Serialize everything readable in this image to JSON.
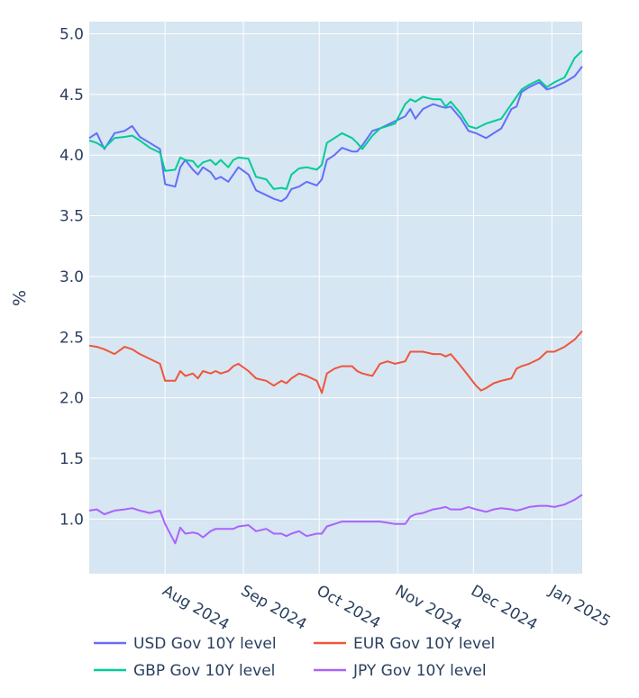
{
  "chart_data": {
    "type": "line",
    "ylabel": "%",
    "ylim": [
      0.55,
      5.1
    ],
    "xlim": [
      "2024-07-02",
      "2025-01-13"
    ],
    "y_ticks": [
      "1.0",
      "1.5",
      "2.0",
      "2.5",
      "3.0",
      "3.5",
      "4.0",
      "4.5",
      "5.0"
    ],
    "x_ticks": [
      {
        "date": "2024-08-01",
        "label": "Aug 2024"
      },
      {
        "date": "2024-09-01",
        "label": "Sep 2024"
      },
      {
        "date": "2024-10-01",
        "label": "Oct 2024"
      },
      {
        "date": "2024-11-01",
        "label": "Nov 2024"
      },
      {
        "date": "2024-12-01",
        "label": "Dec 2024"
      },
      {
        "date": "2025-01-01",
        "label": "Jan 2025"
      }
    ],
    "grid": true,
    "legend_position": "bottom",
    "series": [
      {
        "name": "USD Gov 10Y level",
        "color": "#636efa",
        "x": [
          "2024-07-02",
          "2024-07-05",
          "2024-07-08",
          "2024-07-12",
          "2024-07-16",
          "2024-07-19",
          "2024-07-22",
          "2024-07-26",
          "2024-07-30",
          "2024-08-01",
          "2024-08-05",
          "2024-08-07",
          "2024-08-09",
          "2024-08-12",
          "2024-08-14",
          "2024-08-16",
          "2024-08-19",
          "2024-08-21",
          "2024-08-23",
          "2024-08-26",
          "2024-08-28",
          "2024-08-30",
          "2024-09-03",
          "2024-09-06",
          "2024-09-10",
          "2024-09-13",
          "2024-09-16",
          "2024-09-18",
          "2024-09-20",
          "2024-09-23",
          "2024-09-26",
          "2024-09-30",
          "2024-10-02",
          "2024-10-04",
          "2024-10-07",
          "2024-10-10",
          "2024-10-14",
          "2024-10-16",
          "2024-10-18",
          "2024-10-22",
          "2024-10-25",
          "2024-10-28",
          "2024-10-31",
          "2024-11-04",
          "2024-11-06",
          "2024-11-08",
          "2024-11-11",
          "2024-11-15",
          "2024-11-18",
          "2024-11-20",
          "2024-11-22",
          "2024-11-26",
          "2024-11-29",
          "2024-12-02",
          "2024-12-04",
          "2024-12-06",
          "2024-12-09",
          "2024-12-12",
          "2024-12-16",
          "2024-12-18",
          "2024-12-20",
          "2024-12-23",
          "2024-12-27",
          "2024-12-30",
          "2025-01-02",
          "2025-01-06",
          "2025-01-10",
          "2025-01-13"
        ],
        "values": [
          4.14,
          4.18,
          4.05,
          4.18,
          4.2,
          4.24,
          4.15,
          4.1,
          4.05,
          3.76,
          3.74,
          3.9,
          3.96,
          3.88,
          3.84,
          3.9,
          3.86,
          3.8,
          3.82,
          3.78,
          3.84,
          3.9,
          3.84,
          3.71,
          3.67,
          3.64,
          3.62,
          3.65,
          3.72,
          3.74,
          3.78,
          3.75,
          3.8,
          3.96,
          4.0,
          4.06,
          4.03,
          4.03,
          4.08,
          4.2,
          4.22,
          4.25,
          4.28,
          4.32,
          4.38,
          4.3,
          4.38,
          4.42,
          4.4,
          4.39,
          4.4,
          4.3,
          4.2,
          4.18,
          4.16,
          4.14,
          4.18,
          4.22,
          4.38,
          4.4,
          4.52,
          4.56,
          4.6,
          4.54,
          4.56,
          4.6,
          4.65,
          4.73
        ]
      },
      {
        "name": "EUR Gov 10Y level",
        "color": "#ef553b",
        "x": [
          "2024-07-02",
          "2024-07-05",
          "2024-07-08",
          "2024-07-12",
          "2024-07-16",
          "2024-07-19",
          "2024-07-22",
          "2024-07-26",
          "2024-07-30",
          "2024-08-01",
          "2024-08-05",
          "2024-08-07",
          "2024-08-09",
          "2024-08-12",
          "2024-08-14",
          "2024-08-16",
          "2024-08-19",
          "2024-08-21",
          "2024-08-23",
          "2024-08-26",
          "2024-08-28",
          "2024-08-30",
          "2024-09-03",
          "2024-09-06",
          "2024-09-10",
          "2024-09-13",
          "2024-09-16",
          "2024-09-18",
          "2024-09-20",
          "2024-09-23",
          "2024-09-26",
          "2024-09-30",
          "2024-10-02",
          "2024-10-04",
          "2024-10-07",
          "2024-10-10",
          "2024-10-14",
          "2024-10-16",
          "2024-10-18",
          "2024-10-22",
          "2024-10-25",
          "2024-10-28",
          "2024-10-31",
          "2024-11-04",
          "2024-11-06",
          "2024-11-08",
          "2024-11-11",
          "2024-11-15",
          "2024-11-18",
          "2024-11-20",
          "2024-11-22",
          "2024-11-26",
          "2024-11-29",
          "2024-12-02",
          "2024-12-04",
          "2024-12-06",
          "2024-12-09",
          "2024-12-12",
          "2024-12-16",
          "2024-12-18",
          "2024-12-20",
          "2024-12-23",
          "2024-12-27",
          "2024-12-30",
          "2025-01-02",
          "2025-01-06",
          "2025-01-10",
          "2025-01-13"
        ],
        "values": [
          2.43,
          2.42,
          2.4,
          2.36,
          2.42,
          2.4,
          2.36,
          2.32,
          2.28,
          2.14,
          2.14,
          2.22,
          2.18,
          2.2,
          2.16,
          2.22,
          2.2,
          2.22,
          2.2,
          2.22,
          2.26,
          2.28,
          2.22,
          2.16,
          2.14,
          2.1,
          2.14,
          2.12,
          2.16,
          2.2,
          2.18,
          2.14,
          2.04,
          2.2,
          2.24,
          2.26,
          2.26,
          2.22,
          2.2,
          2.18,
          2.28,
          2.3,
          2.28,
          2.3,
          2.38,
          2.38,
          2.38,
          2.36,
          2.36,
          2.34,
          2.36,
          2.26,
          2.18,
          2.1,
          2.06,
          2.08,
          2.12,
          2.14,
          2.16,
          2.24,
          2.26,
          2.28,
          2.32,
          2.38,
          2.38,
          2.42,
          2.48,
          2.55
        ]
      },
      {
        "name": "GBP Gov 10Y level",
        "color": "#00cc96",
        "x": [
          "2024-07-02",
          "2024-07-05",
          "2024-07-08",
          "2024-07-12",
          "2024-07-16",
          "2024-07-19",
          "2024-07-22",
          "2024-07-26",
          "2024-07-30",
          "2024-08-01",
          "2024-08-05",
          "2024-08-07",
          "2024-08-09",
          "2024-08-12",
          "2024-08-14",
          "2024-08-16",
          "2024-08-19",
          "2024-08-21",
          "2024-08-23",
          "2024-08-26",
          "2024-08-28",
          "2024-08-30",
          "2024-09-03",
          "2024-09-06",
          "2024-09-10",
          "2024-09-13",
          "2024-09-16",
          "2024-09-18",
          "2024-09-20",
          "2024-09-23",
          "2024-09-26",
          "2024-09-30",
          "2024-10-02",
          "2024-10-04",
          "2024-10-07",
          "2024-10-10",
          "2024-10-14",
          "2024-10-16",
          "2024-10-18",
          "2024-10-22",
          "2024-10-25",
          "2024-10-28",
          "2024-10-31",
          "2024-11-04",
          "2024-11-06",
          "2024-11-08",
          "2024-11-11",
          "2024-11-15",
          "2024-11-18",
          "2024-11-20",
          "2024-11-22",
          "2024-11-26",
          "2024-11-29",
          "2024-12-02",
          "2024-12-04",
          "2024-12-06",
          "2024-12-09",
          "2024-12-12",
          "2024-12-16",
          "2024-12-18",
          "2024-12-20",
          "2024-12-23",
          "2024-12-27",
          "2024-12-30",
          "2025-01-02",
          "2025-01-06",
          "2025-01-10",
          "2025-01-13"
        ],
        "values": [
          4.12,
          4.1,
          4.06,
          4.14,
          4.15,
          4.16,
          4.12,
          4.06,
          4.02,
          3.87,
          3.88,
          3.98,
          3.96,
          3.95,
          3.9,
          3.94,
          3.96,
          3.92,
          3.96,
          3.9,
          3.96,
          3.98,
          3.97,
          3.82,
          3.8,
          3.72,
          3.73,
          3.72,
          3.84,
          3.89,
          3.9,
          3.88,
          3.92,
          4.1,
          4.14,
          4.18,
          4.14,
          4.1,
          4.05,
          4.16,
          4.22,
          4.24,
          4.26,
          4.42,
          4.46,
          4.44,
          4.48,
          4.46,
          4.46,
          4.4,
          4.44,
          4.34,
          4.24,
          4.22,
          4.24,
          4.26,
          4.28,
          4.3,
          4.42,
          4.48,
          4.54,
          4.58,
          4.62,
          4.56,
          4.6,
          4.64,
          4.8,
          4.86
        ]
      },
      {
        "name": "JPY Gov 10Y level",
        "color": "#ab63fa",
        "x": [
          "2024-07-02",
          "2024-07-05",
          "2024-07-08",
          "2024-07-12",
          "2024-07-16",
          "2024-07-19",
          "2024-07-22",
          "2024-07-26",
          "2024-07-30",
          "2024-08-01",
          "2024-08-05",
          "2024-08-07",
          "2024-08-09",
          "2024-08-12",
          "2024-08-14",
          "2024-08-16",
          "2024-08-19",
          "2024-08-21",
          "2024-08-23",
          "2024-08-26",
          "2024-08-28",
          "2024-08-30",
          "2024-09-03",
          "2024-09-06",
          "2024-09-10",
          "2024-09-13",
          "2024-09-16",
          "2024-09-18",
          "2024-09-20",
          "2024-09-23",
          "2024-09-26",
          "2024-09-30",
          "2024-10-02",
          "2024-10-04",
          "2024-10-07",
          "2024-10-10",
          "2024-10-14",
          "2024-10-16",
          "2024-10-18",
          "2024-10-22",
          "2024-10-25",
          "2024-10-28",
          "2024-10-31",
          "2024-11-04",
          "2024-11-06",
          "2024-11-08",
          "2024-11-11",
          "2024-11-15",
          "2024-11-18",
          "2024-11-20",
          "2024-11-22",
          "2024-11-26",
          "2024-11-29",
          "2024-12-02",
          "2024-12-04",
          "2024-12-06",
          "2024-12-09",
          "2024-12-12",
          "2024-12-16",
          "2024-12-18",
          "2024-12-20",
          "2024-12-23",
          "2024-12-27",
          "2024-12-30",
          "2025-01-02",
          "2025-01-06",
          "2025-01-10",
          "2025-01-13"
        ],
        "values": [
          1.07,
          1.08,
          1.04,
          1.07,
          1.08,
          1.09,
          1.07,
          1.05,
          1.07,
          0.96,
          0.8,
          0.93,
          0.88,
          0.89,
          0.88,
          0.85,
          0.9,
          0.92,
          0.92,
          0.92,
          0.92,
          0.94,
          0.95,
          0.9,
          0.92,
          0.88,
          0.88,
          0.86,
          0.88,
          0.9,
          0.86,
          0.88,
          0.88,
          0.94,
          0.96,
          0.98,
          0.98,
          0.98,
          0.98,
          0.98,
          0.98,
          0.97,
          0.96,
          0.96,
          1.02,
          1.04,
          1.05,
          1.08,
          1.09,
          1.1,
          1.08,
          1.08,
          1.1,
          1.08,
          1.07,
          1.06,
          1.08,
          1.09,
          1.08,
          1.07,
          1.08,
          1.1,
          1.11,
          1.11,
          1.1,
          1.12,
          1.16,
          1.2
        ]
      }
    ]
  }
}
